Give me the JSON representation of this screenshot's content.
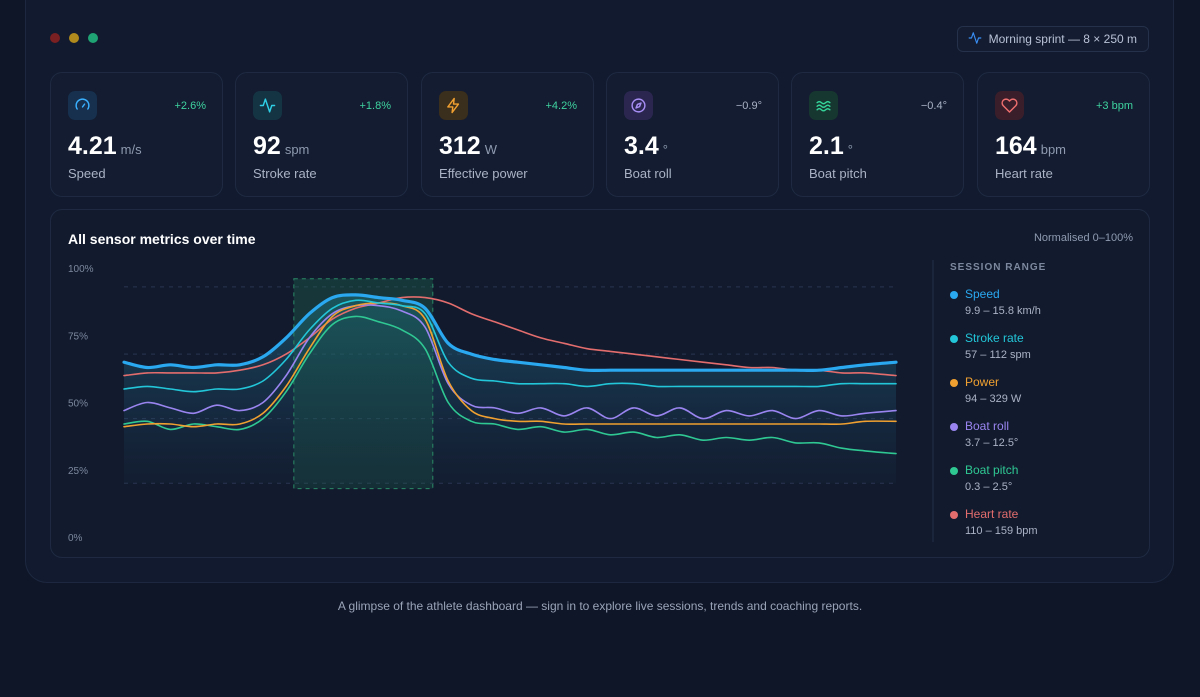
{
  "window": {
    "dots": [
      "#7a1f22",
      "#b08a1c",
      "#1fa374"
    ],
    "session_label": "Morning sprint — 8 × 250 m",
    "session_icon": "activity-icon"
  },
  "metrics": [
    {
      "id": "speed",
      "icon": "gauge-icon",
      "value": "4.21",
      "unit": "m/s",
      "label": "Speed",
      "delta": "+2.6%",
      "delta_color": "#3fd3a0",
      "icon_color": "#3ab0ff",
      "icon_bg": "#16304d"
    },
    {
      "id": "stroke-rate",
      "icon": "pulse-icon",
      "value": "92",
      "unit": "spm",
      "label": "Stroke rate",
      "delta": "+1.8%",
      "delta_color": "#3fd3a0",
      "icon_color": "#2fd0e6",
      "icon_bg": "#143444"
    },
    {
      "id": "power",
      "icon": "bolt-icon",
      "value": "312",
      "unit": "W",
      "label": "Effective power",
      "delta": "+4.2%",
      "delta_color": "#3fd3a0",
      "icon_color": "#f0a030",
      "icon_bg": "#3a2e1c"
    },
    {
      "id": "boat-roll",
      "icon": "compass-icon",
      "value": "3.4",
      "unit": "°",
      "label": "Boat roll",
      "delta": "−0.9°",
      "delta_color": "#aab3c6",
      "icon_color": "#a88ff5",
      "icon_bg": "#2a2650"
    },
    {
      "id": "boat-pitch",
      "icon": "waves-icon",
      "value": "2.1",
      "unit": "°",
      "label": "Boat pitch",
      "delta": "−0.4°",
      "delta_color": "#aab3c6",
      "icon_color": "#34d49a",
      "icon_bg": "#16372f"
    },
    {
      "id": "heart-rate",
      "icon": "heart-icon",
      "value": "164",
      "unit": "bpm",
      "label": "Heart rate",
      "delta": "+3 bpm",
      "delta_color": "#3fd3a0",
      "icon_color": "#f07070",
      "icon_bg": "#3a1e2a"
    }
  ],
  "panel": {
    "title": "All sensor metrics over time",
    "note": "Normalised 0–100%"
  },
  "chart_data": {
    "type": "line",
    "title": "All sensor metrics over time",
    "y_unit": "%",
    "ylim": [
      0,
      100
    ],
    "y_ticks": [
      "100%",
      "75%",
      "50%",
      "25%",
      "0%"
    ],
    "highlight_range": [
      0.22,
      0.4
    ],
    "x": [
      0,
      0.03,
      0.06,
      0.09,
      0.12,
      0.15,
      0.18,
      0.21,
      0.24,
      0.27,
      0.3,
      0.33,
      0.36,
      0.39,
      0.42,
      0.45,
      0.48,
      0.51,
      0.54,
      0.57,
      0.6,
      0.63,
      0.66,
      0.69,
      0.72,
      0.75,
      0.78,
      0.81,
      0.84,
      0.87,
      0.9,
      0.93,
      0.96,
      1.0
    ],
    "series": [
      {
        "name": "Speed",
        "color": "#2aa8f0",
        "range": "9.9 – 15.8 km/h",
        "width": 3.2,
        "values": [
          65,
          63,
          64,
          63,
          64,
          64,
          67,
          74,
          83,
          89,
          90,
          89,
          88,
          85,
          72,
          68,
          66,
          65,
          64,
          63,
          62,
          62,
          62,
          62,
          62,
          62,
          62,
          62,
          62,
          62,
          62,
          63,
          64,
          65
        ]
      },
      {
        "name": "Stroke rate",
        "color": "#22c6d8",
        "range": "57 – 112 spm",
        "width": 1.6,
        "values": [
          55,
          56,
          55,
          54,
          55,
          55,
          58,
          66,
          77,
          85,
          88,
          87,
          86,
          83,
          65,
          59,
          58,
          57,
          57,
          57,
          56,
          57,
          57,
          56,
          56,
          56,
          56,
          56,
          56,
          56,
          56,
          57,
          57,
          57
        ]
      },
      {
        "name": "Power",
        "color": "#f0a030",
        "range": "94 – 329 W",
        "width": 1.6,
        "values": [
          41,
          42,
          42,
          41,
          42,
          42,
          46,
          56,
          70,
          82,
          86,
          87,
          86,
          81,
          58,
          47,
          44,
          43,
          43,
          42,
          42,
          42,
          42,
          42,
          42,
          42,
          42,
          42,
          42,
          42,
          42,
          42,
          43,
          43
        ]
      },
      {
        "name": "Boat roll",
        "color": "#9a85f0",
        "range": "3.7 – 12.5°",
        "width": 1.6,
        "values": [
          47,
          50,
          48,
          46,
          49,
          47,
          50,
          60,
          74,
          83,
          86,
          86,
          84,
          78,
          57,
          49,
          48,
          46,
          48,
          45,
          48,
          44,
          48,
          45,
          48,
          44,
          47,
          45,
          47,
          44,
          47,
          45,
          46,
          47
        ]
      },
      {
        "name": "Boat pitch",
        "color": "#2fc893",
        "range": "0.3 – 2.5°",
        "width": 1.6,
        "values": [
          42,
          43,
          40,
          42,
          41,
          40,
          44,
          54,
          68,
          79,
          82,
          80,
          77,
          70,
          50,
          43,
          42,
          40,
          41,
          39,
          40,
          38,
          39,
          37,
          38,
          36,
          37,
          36,
          37,
          35,
          35,
          33,
          32,
          31
        ]
      },
      {
        "name": "Heart rate",
        "color": "#e36d6d",
        "range": "110 – 159 bpm",
        "width": 1.6,
        "values": [
          60,
          61,
          61,
          61,
          61,
          62,
          64,
          68,
          74,
          81,
          85,
          87,
          89,
          89,
          87,
          83,
          80,
          77,
          74,
          72,
          70,
          69,
          68,
          67,
          66,
          65,
          64,
          63,
          63,
          62,
          62,
          61,
          61,
          60
        ]
      }
    ]
  },
  "legend": {
    "title": "SESSION RANGE"
  },
  "footer": {
    "text": "A glimpse of the athlete dashboard — sign in to explore live sessions, trends and coaching reports."
  }
}
